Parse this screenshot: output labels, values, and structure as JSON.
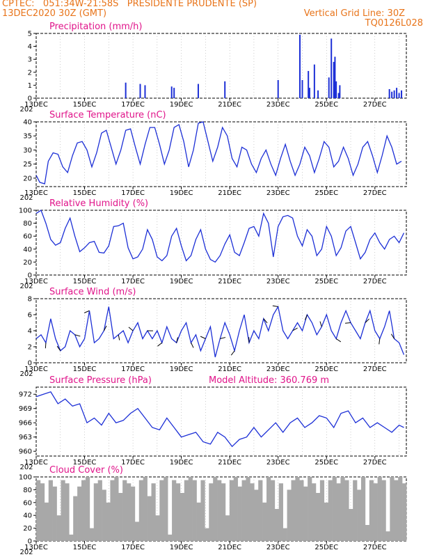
{
  "header": {
    "line1_left": "CPTEC:   051:34W-21:58S   PRESIDENTE PRUDENTE (SP)",
    "line2_left": "13DEC2020 30Z (GMT)",
    "line2_right": "Vertical Grid Line: 30Z",
    "line3_right": "TQ0126L028"
  },
  "x_tick_labels": [
    "13DEC",
    "15DEC",
    "17DEC",
    "19DEC",
    "21DEC",
    "23DEC",
    "25DEC",
    "27DEC"
  ],
  "x_tick_prefix": "202",
  "colors": {
    "header": "#e8741a",
    "title": "#e0148a",
    "series": "#1c2fd6",
    "cloud": "#a8a8a8",
    "frame": "#000000"
  },
  "chart_data": [
    {
      "type": "bar",
      "title": "Precipitation (mm/h)",
      "x_days": [
        3.7,
        4.3,
        4.5,
        5.6,
        5.7,
        6.7,
        7.8,
        10.0,
        10.9,
        11.0,
        11.25,
        11.3,
        11.5,
        11.65,
        12.1,
        12.2,
        12.3,
        12.35,
        12.4,
        12.5,
        12.55,
        14.6,
        14.7,
        14.8,
        14.9,
        15.0,
        15.1
      ],
      "values": [
        1.2,
        1.1,
        1.0,
        0.9,
        0.8,
        1.1,
        1.3,
        1.4,
        4.9,
        1.4,
        2.1,
        0.8,
        2.6,
        0.6,
        1.6,
        4.6,
        2.8,
        3.2,
        1.3,
        0.4,
        1.0,
        0.7,
        0.5,
        0.6,
        0.8,
        0.4,
        0.6
      ],
      "ylim": [
        0,
        5
      ],
      "yticks": [
        0,
        1,
        2,
        3,
        4,
        5
      ]
    },
    {
      "type": "line",
      "title": "Surface Temperature (nC)",
      "x_days": [
        0,
        0.15,
        0.35,
        0.5,
        0.7,
        0.9,
        1.1,
        1.3,
        1.5,
        1.7,
        1.9,
        2.1,
        2.3,
        2.5,
        2.7,
        2.9,
        3.1,
        3.3,
        3.5,
        3.7,
        3.9,
        4.1,
        4.3,
        4.5,
        4.7,
        4.9,
        5.1,
        5.3,
        5.5,
        5.7,
        5.9,
        6.1,
        6.3,
        6.5,
        6.7,
        6.9,
        7.1,
        7.3,
        7.5,
        7.7,
        7.9,
        8.1,
        8.3,
        8.5,
        8.7,
        8.9,
        9.1,
        9.3,
        9.5,
        9.7,
        9.9,
        10.1,
        10.3,
        10.5,
        10.7,
        10.9,
        11.1,
        11.3,
        11.5,
        11.7,
        11.9,
        12.1,
        12.3,
        12.5,
        12.7,
        12.9,
        13.1,
        13.3,
        13.5,
        13.7,
        13.9,
        14.1,
        14.3,
        14.5,
        14.7,
        14.9,
        15.1
      ],
      "values": [
        21,
        18.5,
        18,
        26,
        29,
        28.5,
        24,
        22,
        28,
        32.5,
        33,
        30,
        24,
        29,
        36,
        37,
        31,
        25,
        30,
        37,
        37.5,
        31,
        25,
        32,
        38,
        38,
        32,
        25,
        30,
        38,
        39,
        33,
        24,
        30,
        39.5,
        40,
        33,
        26,
        31,
        38,
        35,
        27,
        24,
        31,
        30,
        25,
        22,
        27,
        30,
        25,
        21,
        27,
        32,
        26,
        21,
        25,
        31,
        28,
        22,
        27,
        33,
        31,
        24,
        26,
        31,
        27,
        21,
        25,
        31,
        33,
        28,
        22,
        28,
        35,
        31,
        25,
        26
      ],
      "ylim": [
        17,
        40
      ],
      "yticks": [
        20,
        25,
        30,
        35,
        40
      ]
    },
    {
      "type": "line",
      "title": "Relative Humidity (%)",
      "x_days": [
        0,
        0.2,
        0.4,
        0.6,
        0.8,
        1.0,
        1.2,
        1.4,
        1.6,
        1.8,
        2.0,
        2.2,
        2.4,
        2.6,
        2.8,
        3.0,
        3.2,
        3.4,
        3.6,
        3.8,
        4.0,
        4.2,
        4.4,
        4.6,
        4.8,
        5.0,
        5.2,
        5.4,
        5.6,
        5.8,
        6.0,
        6.2,
        6.4,
        6.6,
        6.8,
        7.0,
        7.2,
        7.4,
        7.6,
        7.8,
        8.0,
        8.2,
        8.4,
        8.6,
        8.8,
        9.0,
        9.2,
        9.4,
        9.6,
        9.8,
        10.0,
        10.2,
        10.4,
        10.6,
        10.8,
        11.0,
        11.2,
        11.4,
        11.6,
        11.8,
        12.0,
        12.2,
        12.4,
        12.6,
        12.8,
        13.0,
        13.2,
        13.4,
        13.6,
        13.8,
        14.0,
        14.2,
        14.4,
        14.6,
        14.8,
        15.0,
        15.2
      ],
      "values": [
        95,
        100,
        80,
        55,
        46,
        50,
        72,
        88,
        60,
        36,
        42,
        50,
        52,
        35,
        34,
        45,
        75,
        76,
        80,
        42,
        25,
        28,
        40,
        70,
        55,
        28,
        22,
        30,
        60,
        72,
        45,
        22,
        30,
        55,
        70,
        40,
        24,
        20,
        30,
        48,
        62,
        35,
        30,
        50,
        72,
        75,
        60,
        95,
        80,
        28,
        75,
        90,
        92,
        88,
        60,
        45,
        70,
        60,
        30,
        40,
        75,
        60,
        30,
        42,
        68,
        75,
        50,
        25,
        35,
        55,
        65,
        50,
        40,
        55,
        60,
        50,
        65
      ],
      "ylim": [
        0,
        100
      ],
      "yticks": [
        0,
        20,
        40,
        60,
        80,
        100
      ]
    },
    {
      "type": "line",
      "title": "Surface Wind (m/s)",
      "x_days": [
        0,
        0.2,
        0.4,
        0.6,
        0.8,
        1.0,
        1.2,
        1.4,
        1.6,
        1.8,
        2.0,
        2.2,
        2.4,
        2.6,
        2.8,
        3.0,
        3.2,
        3.4,
        3.6,
        3.8,
        4.0,
        4.2,
        4.4,
        4.6,
        4.8,
        5.0,
        5.2,
        5.4,
        5.6,
        5.8,
        6.0,
        6.2,
        6.4,
        6.6,
        6.8,
        7.0,
        7.2,
        7.4,
        7.6,
        7.8,
        8.0,
        8.2,
        8.4,
        8.6,
        8.8,
        9.0,
        9.2,
        9.4,
        9.6,
        9.8,
        10.0,
        10.2,
        10.4,
        10.6,
        10.8,
        11.0,
        11.2,
        11.4,
        11.6,
        11.8,
        12.0,
        12.2,
        12.4,
        12.6,
        12.8,
        13.0,
        13.2,
        13.4,
        13.6,
        13.8,
        14.0,
        14.2,
        14.4,
        14.6,
        14.8,
        15.0,
        15.2
      ],
      "values": [
        3,
        3.5,
        2.5,
        5.5,
        3,
        1.5,
        2,
        4,
        3.5,
        2,
        3,
        6.5,
        2.5,
        3,
        4,
        7,
        3,
        3.5,
        4,
        2.5,
        4,
        5,
        3,
        4,
        3,
        4,
        2.5,
        4.5,
        3,
        2.5,
        4,
        5,
        2.5,
        3.5,
        1.5,
        3,
        4.5,
        0.7,
        3,
        5,
        3.5,
        1.5,
        4,
        6,
        2.5,
        4,
        3,
        5.5,
        4,
        6,
        7,
        4,
        3,
        4,
        5,
        4,
        6,
        5,
        3.5,
        4.5,
        6,
        4,
        3,
        5,
        6.5,
        5,
        4,
        3,
        5,
        6.5,
        4,
        3,
        4.5,
        6.5,
        3,
        2.5,
        1
      ],
      "ylim": [
        0,
        8
      ],
      "yticks": [
        0,
        2,
        4,
        6,
        8
      ]
    },
    {
      "type": "line",
      "title": "Surface Pressure (hPa)",
      "subtitle": "Model Altitude: 360.769 m",
      "x_days": [
        0,
        0.3,
        0.6,
        0.9,
        1.2,
        1.5,
        1.8,
        2.1,
        2.4,
        2.7,
        3.0,
        3.3,
        3.6,
        3.9,
        4.2,
        4.5,
        4.8,
        5.1,
        5.4,
        5.7,
        6.0,
        6.3,
        6.6,
        6.9,
        7.2,
        7.5,
        7.8,
        8.1,
        8.4,
        8.7,
        9.0,
        9.3,
        9.6,
        9.9,
        10.2,
        10.5,
        10.8,
        11.1,
        11.4,
        11.7,
        12.0,
        12.3,
        12.6,
        12.9,
        13.2,
        13.5,
        13.8,
        14.1,
        14.4,
        14.7,
        15.0,
        15.2
      ],
      "values": [
        971.5,
        972,
        972.5,
        970,
        971,
        969.5,
        970,
        966,
        967,
        965.5,
        968,
        966,
        966.5,
        968,
        969,
        967,
        965,
        964.5,
        967,
        965,
        963,
        963.5,
        964,
        962,
        961.5,
        964,
        963,
        961,
        962.5,
        963,
        965,
        963,
        964.5,
        966,
        964,
        966,
        967,
        965,
        966,
        967.5,
        967,
        965,
        968,
        968.5,
        966,
        967,
        965,
        966,
        965,
        964,
        965.5,
        965
      ],
      "ylim": [
        959,
        973.5
      ],
      "yticks": [
        960,
        963,
        966,
        969,
        972
      ]
    },
    {
      "type": "bar",
      "title": "Cloud Cover (%)",
      "x_range_days": [
        0,
        15.3
      ],
      "values": [
        95,
        90,
        60,
        95,
        85,
        40,
        95,
        90,
        10,
        70,
        85,
        95,
        100,
        20,
        90,
        95,
        80,
        60,
        95,
        100,
        75,
        95,
        90,
        85,
        30,
        95,
        100,
        70,
        90,
        40,
        95,
        100,
        10,
        95,
        90,
        75,
        95,
        100,
        95,
        60,
        95,
        20,
        90,
        100,
        95,
        90,
        40,
        95,
        100,
        85,
        95,
        100,
        90,
        80,
        95,
        60,
        100,
        95,
        50,
        90,
        20,
        80,
        95,
        100,
        95,
        85,
        100,
        90,
        75,
        95,
        60,
        95,
        100,
        90,
        100,
        95,
        50,
        95,
        80,
        100,
        25,
        95,
        90,
        100,
        95,
        15,
        100,
        95,
        100,
        90
      ],
      "ylim": [
        0,
        100
      ],
      "yticks": [
        0,
        20,
        40,
        60,
        80,
        100
      ]
    }
  ]
}
